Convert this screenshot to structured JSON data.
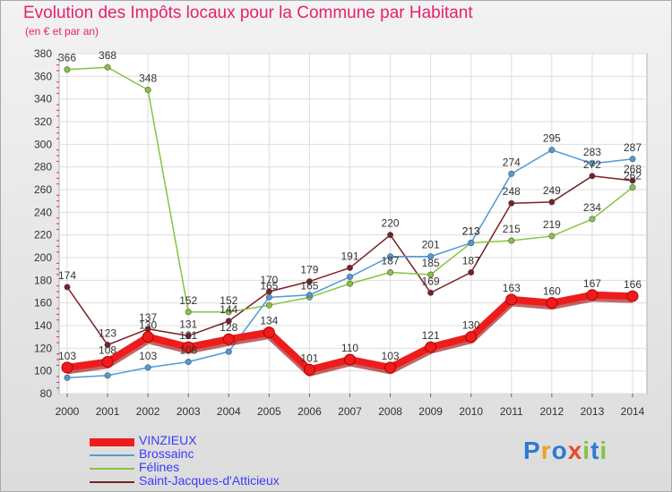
{
  "title": "Evolution des Impôts locaux pour la Commune par Habitant",
  "subtitle": "(en € et par an)",
  "logo": {
    "text": "Proxiti",
    "letters": [
      {
        "ch": "P",
        "color": "#2b7bd1"
      },
      {
        "ch": "r",
        "color": "#e8a22a"
      },
      {
        "ch": "o",
        "color": "#2b7bd1"
      },
      {
        "ch": "x",
        "color": "#e64b2a"
      },
      {
        "ch": "i",
        "color": "#86c440"
      },
      {
        "ch": "t",
        "color": "#2b7bd1"
      },
      {
        "ch": "i",
        "color": "#86c440"
      }
    ]
  },
  "chart_data": {
    "type": "line",
    "x": [
      2000,
      2001,
      2002,
      2003,
      2004,
      2005,
      2006,
      2007,
      2008,
      2009,
      2010,
      2011,
      2012,
      2013,
      2014
    ],
    "ylim": [
      80,
      380
    ],
    "y_ticks": [
      80,
      100,
      120,
      140,
      160,
      180,
      200,
      220,
      240,
      260,
      280,
      300,
      320,
      340,
      360,
      380
    ],
    "grid": true,
    "legend_position": "bottom-left",
    "series": [
      {
        "name": "VINZIEUX",
        "color": "#ee1c1c",
        "text_color": "#3b3bff",
        "values": [
          103,
          108,
          130,
          121,
          128,
          134,
          101,
          110,
          103,
          121,
          130,
          163,
          160,
          167,
          166
        ],
        "labels": [
          "103",
          "108",
          "130",
          "121",
          "128",
          "134",
          "101",
          "110",
          "103",
          "121",
          "130",
          "163",
          "160",
          "167",
          "166"
        ]
      },
      {
        "name": "Brossainc",
        "color": "#4f9ad6",
        "text_color": "#3b3bff",
        "values": [
          94,
          96,
          103,
          108,
          117,
          165,
          167,
          183,
          201,
          201,
          213,
          274,
          295,
          283,
          287
        ],
        "labels": [
          "",
          "",
          "103",
          "108",
          "",
          "165",
          "",
          "",
          "",
          "201",
          "213",
          "274",
          "295",
          "283",
          "287"
        ]
      },
      {
        "name": "Félines",
        "color": "#86c440",
        "text_color": "#3b3bff",
        "values": [
          366,
          368,
          348,
          152,
          152,
          158,
          165,
          177,
          187,
          185,
          213,
          215,
          219,
          234,
          262
        ],
        "labels": [
          "366",
          "368",
          "348",
          "152",
          "152",
          "",
          "165",
          "",
          "187",
          "185",
          "213",
          "215",
          "219",
          "234",
          "262"
        ]
      },
      {
        "name": "Saint-Jacques-d'Atticieux",
        "color": "#7a1f26",
        "text_color": "#3b3bff",
        "values": [
          174,
          123,
          137,
          131,
          144,
          170,
          179,
          191,
          220,
          169,
          187,
          248,
          249,
          272,
          268
        ],
        "labels": [
          "174",
          "123",
          "137",
          "131",
          "144",
          "170",
          "179",
          "191",
          "220",
          "169",
          "187",
          "248",
          "249",
          "272",
          "268"
        ]
      }
    ]
  }
}
